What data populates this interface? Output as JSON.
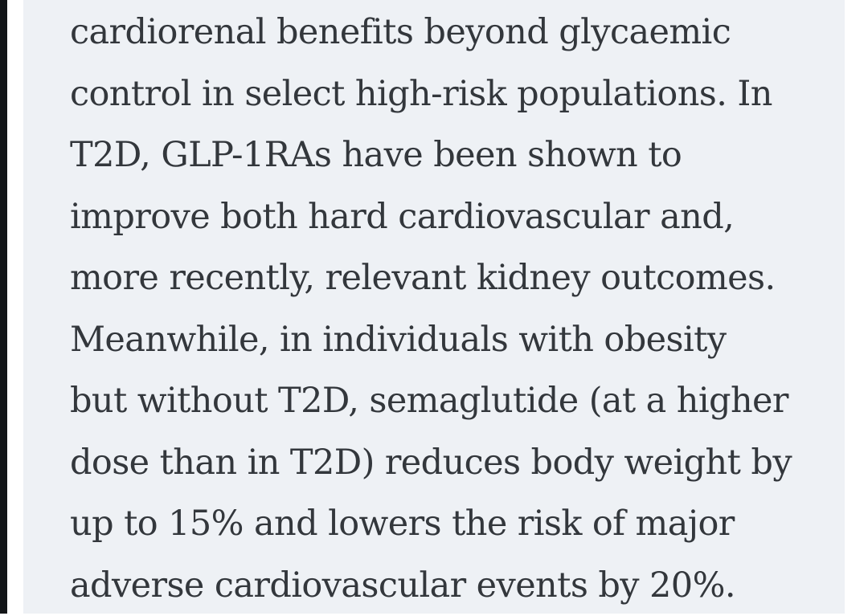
{
  "page": {
    "background_color": "#ffffff",
    "panel_background_color": "#eef1f5",
    "text_color": "#33373c",
    "left_bar_color": "#121518"
  },
  "article": {
    "lines": [
      "cardiorenal benefits beyond glycaemic",
      "control in select high-risk populations. In",
      "T2D, GLP-1RAs have been shown to",
      "improve both hard cardiovascular and,",
      "more recently, relevant kidney outcomes.",
      "Meanwhile, in individuals with obesity",
      "but without T2D, semaglutide (at a higher",
      "dose than in T2D) reduces body weight by",
      "up to 15% and lowers the risk of major",
      "adverse cardiovascular events by 20%."
    ]
  }
}
